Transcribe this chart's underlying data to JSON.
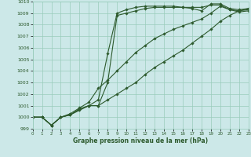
{
  "background_color": "#cce8e8",
  "grid_color": "#99ccbb",
  "line_color": "#2d5a2d",
  "marker_color": "#2d5a2d",
  "xlabel": "Graphe pression niveau de la mer (hPa)",
  "xlim": [
    0,
    23
  ],
  "ylim": [
    999,
    1010
  ],
  "yticks": [
    999,
    1000,
    1001,
    1002,
    1003,
    1004,
    1005,
    1006,
    1007,
    1008,
    1009,
    1010
  ],
  "xticks": [
    0,
    1,
    2,
    3,
    4,
    5,
    6,
    7,
    8,
    9,
    10,
    11,
    12,
    13,
    14,
    15,
    16,
    17,
    18,
    19,
    20,
    21,
    22,
    23
  ],
  "series": [
    [
      1000.0,
      1000.0,
      999.3,
      1000.0,
      1000.2,
      1000.7,
      1001.0,
      1001.0,
      1003.0,
      1008.8,
      1009.0,
      1009.2,
      1009.4,
      1009.5,
      1009.5,
      1009.5,
      1009.5,
      1009.5,
      1009.5,
      1009.7,
      1009.7,
      1009.3,
      1009.2,
      1009.3
    ],
    [
      1000.0,
      1000.0,
      999.3,
      1000.0,
      1000.2,
      1000.6,
      1001.0,
      1001.5,
      1005.5,
      1009.0,
      1009.3,
      1009.5,
      1009.6,
      1009.6,
      1009.6,
      1009.6,
      1009.5,
      1009.4,
      1009.2,
      1009.8,
      1009.8,
      1009.4,
      1009.3,
      1009.4
    ],
    [
      1000.0,
      1000.0,
      999.3,
      1000.0,
      1000.3,
      1000.8,
      1001.3,
      1002.5,
      1003.2,
      1004.0,
      1004.8,
      1005.6,
      1006.2,
      1006.8,
      1007.2,
      1007.6,
      1007.9,
      1008.2,
      1008.5,
      1009.0,
      1009.6,
      1009.3,
      1009.1,
      1009.2
    ],
    [
      1000.0,
      1000.0,
      999.3,
      1000.0,
      1000.2,
      1000.7,
      1001.0,
      1001.0,
      1001.5,
      1002.0,
      1002.5,
      1003.0,
      1003.7,
      1004.3,
      1004.8,
      1005.3,
      1005.8,
      1006.4,
      1007.0,
      1007.6,
      1008.3,
      1008.8,
      1009.2,
      1009.4
    ]
  ]
}
